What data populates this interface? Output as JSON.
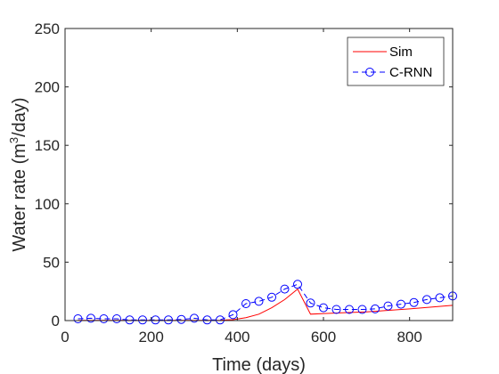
{
  "chart_data": {
    "type": "line",
    "xlabel": "Time (days)",
    "ylabel_main": "Water rate (m",
    "ylabel_sup": "3",
    "ylabel_tail": "/day)",
    "xlim": [
      0,
      900
    ],
    "ylim": [
      0,
      250
    ],
    "xticks": [
      "0",
      "200",
      "400",
      "600",
      "800"
    ],
    "yticks": [
      "0",
      "50",
      "100",
      "150",
      "200",
      "250"
    ],
    "grid": false,
    "legend_position": "top-right",
    "series": [
      {
        "name": "Sim",
        "color": "#ff0000",
        "style": "solid",
        "marker": "none",
        "x": [
          30,
          100,
          200,
          300,
          360,
          390,
          420,
          450,
          480,
          510,
          540,
          570,
          600,
          700,
          800,
          900
        ],
        "y": [
          0.2,
          0.2,
          0.2,
          0.2,
          0.3,
          0.8,
          2.5,
          5.5,
          11,
          18,
          27,
          5.5,
          6,
          7.5,
          10,
          13
        ]
      },
      {
        "name": "C-RNN",
        "color": "#0000ff",
        "style": "dashed",
        "marker": "circle",
        "x": [
          30,
          60,
          90,
          120,
          150,
          180,
          210,
          240,
          270,
          300,
          330,
          360,
          390,
          420,
          450,
          480,
          510,
          540,
          570,
          600,
          630,
          660,
          690,
          720,
          750,
          780,
          810,
          840,
          870,
          900
        ],
        "y": [
          1.5,
          2,
          1.5,
          1.5,
          0.5,
          0.5,
          0.5,
          0.5,
          1,
          2,
          0.5,
          0.5,
          5,
          14.5,
          16.5,
          20,
          27,
          31,
          15,
          11,
          9.5,
          9.5,
          9.5,
          10,
          12.5,
          14,
          15.5,
          18,
          19.5,
          21
        ]
      }
    ]
  }
}
